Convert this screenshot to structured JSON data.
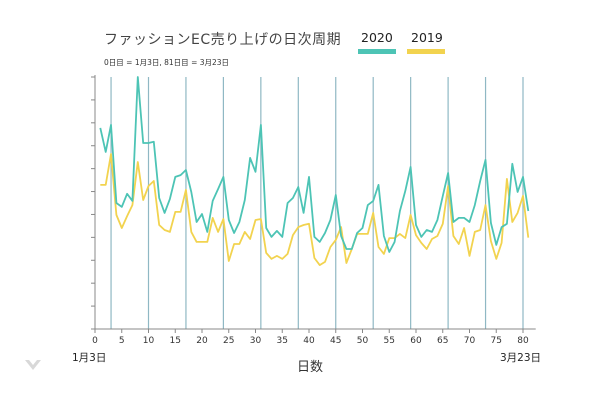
{
  "chart_data": {
    "type": "line",
    "title": "ファッションEC売り上げの日次周期",
    "subtitle": "0日目 = 1月3日, 81日目 = 3月23日",
    "xlabel": "日数",
    "ylabel": "",
    "x_start_label": "1月3日",
    "x_end_label": "3月23日",
    "xlim": [
      0,
      82
    ],
    "ylim": [
      0,
      11
    ],
    "y_tick_labels_shown": false,
    "y_ticks": [
      0,
      1,
      2,
      3,
      4,
      5,
      6,
      7,
      8,
      9,
      10,
      11
    ],
    "x_ticks": [
      0,
      5,
      10,
      15,
      20,
      25,
      30,
      35,
      40,
      45,
      50,
      55,
      60,
      65,
      70,
      75,
      80
    ],
    "vertical_reference_lines": [
      3,
      10,
      17,
      24,
      31,
      38,
      45,
      52,
      59,
      66,
      73,
      80
    ],
    "legend_position": "top-right",
    "x": [
      1,
      2,
      3,
      4,
      5,
      6,
      7,
      8,
      9,
      10,
      11,
      12,
      13,
      14,
      15,
      16,
      17,
      18,
      19,
      20,
      21,
      22,
      23,
      24,
      25,
      26,
      27,
      28,
      29,
      30,
      31,
      32,
      33,
      34,
      35,
      36,
      37,
      38,
      39,
      40,
      41,
      42,
      43,
      44,
      45,
      46,
      47,
      48,
      49,
      50,
      51,
      52,
      53,
      54,
      55,
      56,
      57,
      58,
      59,
      60,
      61,
      62,
      63,
      64,
      65,
      66,
      67,
      68,
      69,
      70,
      71,
      72,
      73,
      74,
      75,
      76,
      77,
      78,
      79,
      80,
      81
    ],
    "series": [
      {
        "name": "2020",
        "color": "#4dc4b5",
        "values": [
          8.78,
          7.73,
          8.91,
          5.5,
          5.33,
          5.9,
          5.59,
          11.0,
          8.12,
          8.12,
          8.17,
          5.72,
          5.07,
          5.68,
          6.64,
          6.72,
          6.94,
          5.98,
          4.67,
          5.02,
          4.24,
          5.59,
          6.11,
          6.64,
          4.76,
          4.19,
          4.67,
          5.63,
          7.47,
          6.86,
          8.91,
          4.41,
          4.02,
          4.28,
          4.02,
          5.5,
          5.72,
          6.2,
          5.07,
          6.64,
          4.02,
          3.8,
          4.19,
          4.76,
          5.85,
          4.06,
          3.49,
          3.49,
          4.19,
          4.41,
          5.41,
          5.59,
          6.29,
          4.06,
          3.36,
          3.8,
          5.15,
          6.03,
          7.07,
          4.54,
          4.02,
          4.32,
          4.24,
          4.76,
          5.81,
          6.81,
          4.67,
          4.85,
          4.85,
          4.67,
          5.41,
          6.46,
          7.38,
          4.63,
          3.67,
          4.45,
          4.59,
          7.21,
          5.98,
          6.64,
          5.15
        ]
      },
      {
        "name": "2019",
        "color": "#f2d34f",
        "values": [
          6.29,
          6.29,
          7.64,
          4.98,
          4.41,
          4.93,
          5.41,
          7.29,
          5.63,
          6.24,
          6.46,
          4.54,
          4.32,
          4.24,
          5.11,
          5.11,
          6.07,
          4.24,
          3.8,
          3.8,
          3.8,
          4.85,
          4.24,
          4.8,
          2.97,
          3.71,
          3.71,
          4.24,
          3.93,
          4.76,
          4.8,
          3.32,
          3.06,
          3.19,
          3.06,
          3.28,
          4.1,
          4.45,
          4.54,
          4.59,
          3.1,
          2.79,
          2.93,
          3.58,
          3.89,
          4.45,
          2.88,
          3.49,
          4.15,
          4.15,
          4.15,
          5.07,
          3.58,
          3.28,
          3.97,
          3.97,
          4.15,
          3.97,
          4.98,
          4.1,
          3.76,
          3.49,
          3.93,
          4.06,
          4.59,
          6.24,
          4.06,
          3.71,
          4.41,
          3.19,
          4.24,
          4.32,
          5.41,
          3.84,
          3.06,
          3.76,
          6.55,
          4.67,
          5.07,
          5.81,
          3.99
        ]
      }
    ]
  },
  "legend": [
    {
      "label": "2020",
      "color": "#4dc4b5"
    },
    {
      "label": "2019",
      "color": "#f2d34f"
    }
  ],
  "logo": {
    "icon": "v-chevron-logo-icon"
  }
}
